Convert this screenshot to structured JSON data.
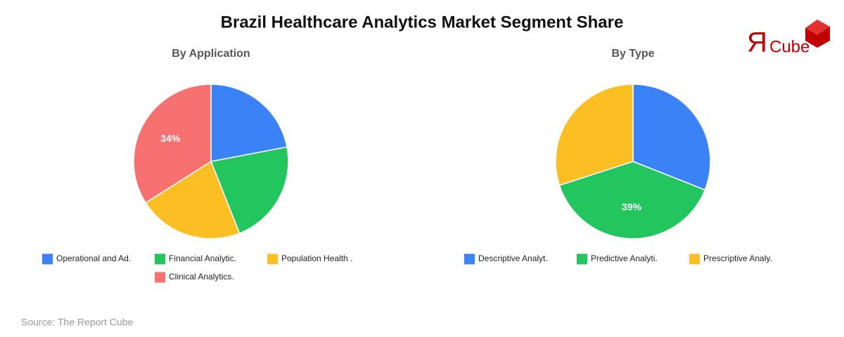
{
  "title": "Brazil Healthcare Analytics Market Segment Share",
  "logo": {
    "mark": "Я",
    "text": "Cube"
  },
  "source": "Source: The Report Cube",
  "chart_data": [
    {
      "type": "pie",
      "title": "By Application",
      "categories": [
        "Operational and Ad.",
        "Financial Analytic.",
        "Population Health .",
        "Clinical Analytics."
      ],
      "values": [
        22,
        22,
        22,
        34
      ],
      "value_labels": [
        null,
        null,
        null,
        "34%"
      ],
      "colors": [
        "#3b82f6",
        "#22c55e",
        "#fbbf24",
        "#f87171"
      ]
    },
    {
      "type": "pie",
      "title": "By Type",
      "categories": [
        "Descriptive Analyt.",
        "Predictive Analyti.",
        "Prescriptive Analy."
      ],
      "values": [
        31,
        39,
        30
      ],
      "value_labels": [
        null,
        "39%",
        null
      ],
      "colors": [
        "#3b82f6",
        "#22c55e",
        "#fbbf24"
      ]
    }
  ]
}
